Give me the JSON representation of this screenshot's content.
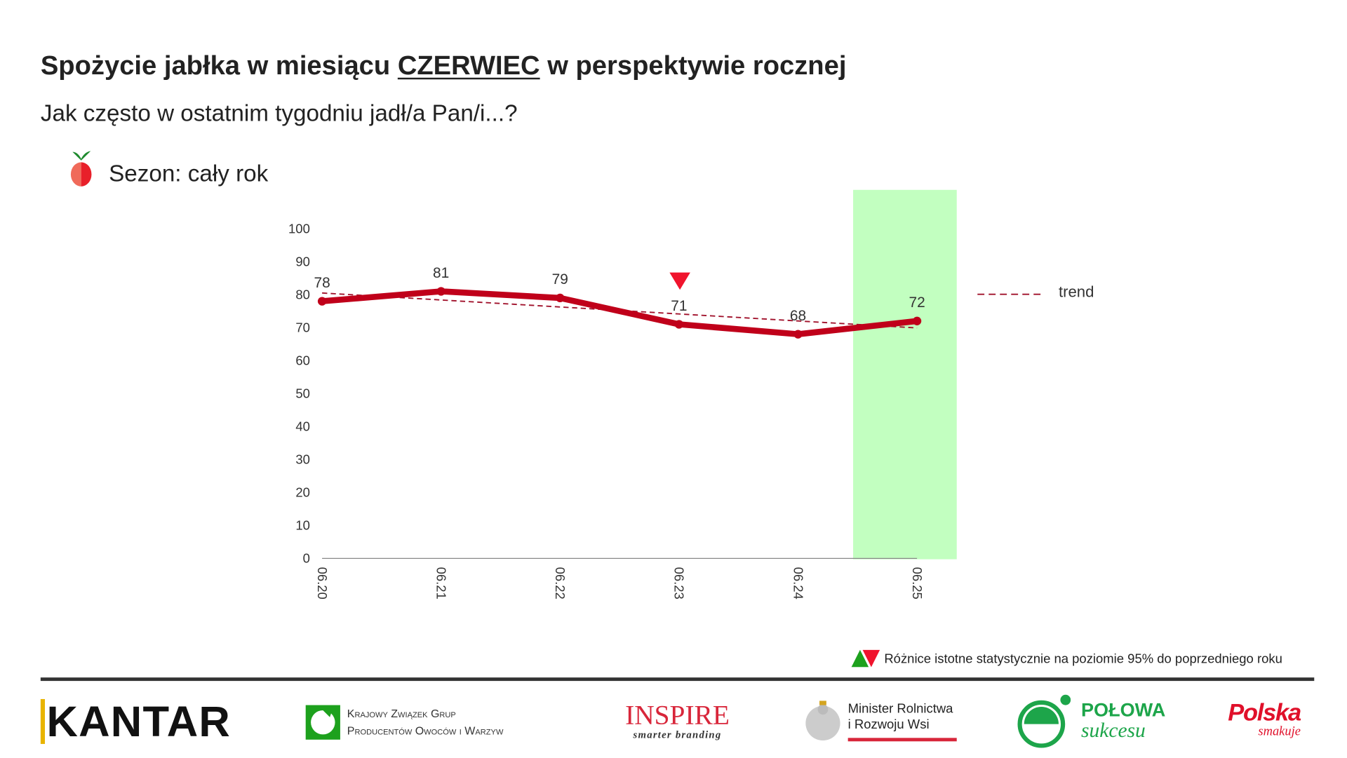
{
  "header": {
    "title_pre": "Spożycie jabłka w miesiącu ",
    "title_month": "CZERWIEC",
    "title_post": " w perspektywie rocznej",
    "subtitle": "Jak często w ostatnim tygodniu jadł/a Pan/i...?",
    "season": "Sezon: cały rok"
  },
  "chart_data": {
    "type": "line",
    "categories": [
      "06.20",
      "06.21",
      "06.22",
      "06.23",
      "06.24",
      "06.25"
    ],
    "series": [
      {
        "name": "Spożycie",
        "values": [
          78,
          81,
          79,
          71,
          68,
          72
        ],
        "color": "#C0001A"
      }
    ],
    "trend": {
      "name": "trend",
      "start": 80.5,
      "end": 69.9,
      "color": "#A0102A"
    },
    "data_labels": [
      "78",
      "81",
      "79",
      "71",
      "68",
      "72"
    ],
    "ylim": [
      0,
      100
    ],
    "yticks": [
      "0",
      "10",
      "20",
      "30",
      "40",
      "50",
      "60",
      "70",
      "80",
      "90",
      "100"
    ],
    "highlight_category": "06.25",
    "highlight_color": "#C2FFC0",
    "significance": [
      {
        "category": "06.23",
        "direction": "down",
        "color": "#F0142D"
      }
    ],
    "legend": "right"
  },
  "footer": {
    "significance_note": "Różnice istotne statystycznie na poziomie 95% do poprzedniego roku",
    "logos": {
      "kantar": "KANTAR",
      "kzgp_line1": "Krajowy Związek Grup",
      "kzgp_line2": "Producentów Owoców i Warzyw",
      "inspire": "INSPIRE",
      "inspire_tag": "smarter branding",
      "minister_line1": "Minister Rolnictwa",
      "minister_line2": "i Rozwoju Wsi",
      "polowa_line1": "POŁOWA",
      "polowa_line2": "sukcesu",
      "polska_line1": "Polska",
      "polska_line2": "smakuje"
    }
  }
}
